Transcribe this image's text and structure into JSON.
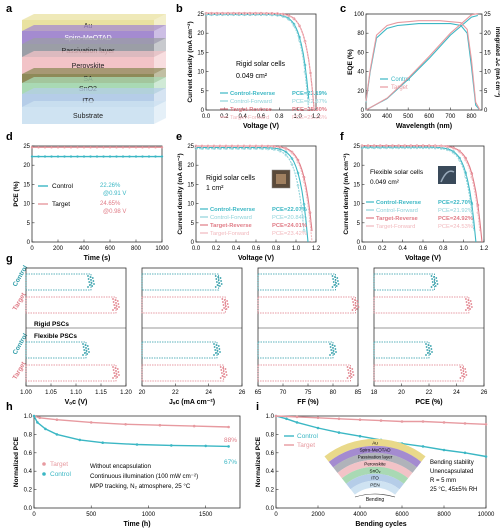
{
  "colors": {
    "control": "#3bb7c4",
    "target": "#e79aa0",
    "bar_control": "#2a9aa6",
    "bar_target": "#e07b86"
  },
  "panels": {
    "a": {
      "letter": "a",
      "layers": [
        {
          "name": "Au",
          "color": "#e9e2a0"
        },
        {
          "name": "Spiro-MeOTAD",
          "color": "#a48bd0"
        },
        {
          "name": "Passivation layer",
          "color": "#9b9ea6"
        },
        {
          "name": "Perovskite",
          "color": "#f2c3c7"
        },
        {
          "name": "SA",
          "color": "#8e8a58"
        },
        {
          "name": "SnO2",
          "color": "#a9d9b4"
        },
        {
          "name": "ITO",
          "color": "#b5cde8"
        },
        {
          "name": "Substrate",
          "color": "#cfe3f2"
        }
      ]
    },
    "b": {
      "letter": "b",
      "note1": "Rigid solar cells",
      "note2": "0.049 cm²"
    },
    "c": {
      "letter": "c"
    },
    "d": {
      "letter": "d",
      "control_text": [
        "22.26%",
        "@0.91 V"
      ],
      "target_text": [
        "24.65%",
        "@0.98 V"
      ]
    },
    "e": {
      "letter": "e",
      "note1": "Rigid solar cells",
      "note2": "1 cm²"
    },
    "f": {
      "letter": "f",
      "note1": "Flexible solar cells",
      "note2": "0.049 cm²"
    },
    "g": {
      "letter": "g",
      "row_labels": [
        "Control",
        "Target",
        "Control",
        "Target"
      ],
      "group_labels": [
        "Rigid PSCs",
        "Flexible PSCs"
      ]
    },
    "h": {
      "letter": "h",
      "notes": [
        "Without encapsulation",
        "Continuous illumination (100 mW cm⁻²)",
        "MPP tracking, N₂ atmosphere, 25 °C"
      ],
      "end_labels": [
        "88%",
        "67%"
      ]
    },
    "i": {
      "letter": "i",
      "notes": [
        "Bending stability",
        "Unencapsulated",
        "R = 5 mm",
        "25 °C, 45±5% RH"
      ],
      "inset_layers": [
        "Au",
        "Spiro-MeOTAD",
        "Passivation layer",
        "Perovskite",
        "SnO₂",
        "ITO",
        "PEN"
      ],
      "inset_label": "Bending"
    }
  },
  "chart_data": [
    {
      "panel": "b",
      "type": "line",
      "xlabel": "Voltage (V)",
      "ylabel": "Current density (mA cm⁻²)",
      "xlim": [
        0.0,
        1.2
      ],
      "ylim": [
        0,
        25
      ],
      "xticks": [
        "0.0",
        "0.2",
        "0.4",
        "0.6",
        "0.8",
        "1.0",
        "1.2"
      ],
      "yticks": [
        "0",
        "5",
        "10",
        "15",
        "20",
        "25"
      ],
      "series": [
        {
          "name": "Control-Reverse",
          "pce": "PCE=23.19%",
          "jsc": 24.9,
          "voc": 1.13,
          "color": "#3bb7c4"
        },
        {
          "name": "Control-Forward",
          "pce": "PCE=22.87%",
          "jsc": 24.8,
          "voc": 1.12,
          "color": "#8fd3da"
        },
        {
          "name": "Target-Reverse",
          "pce": "PCE=25.30%",
          "jsc": 25.2,
          "voc": 1.18,
          "color": "#e07b86"
        },
        {
          "name": "Target-Forward",
          "pce": "PCE=25.26%",
          "jsc": 25.1,
          "voc": 1.18,
          "color": "#f1b8bd"
        }
      ]
    },
    {
      "panel": "c",
      "type": "line",
      "xlabel": "Wavelength (nm)",
      "ylabel": "EQE (%)",
      "y2label": "Integrated Jₛc (mA cm⁻²)",
      "xlim": [
        300,
        850
      ],
      "ylim": [
        0,
        100
      ],
      "y2lim": [
        0,
        25
      ],
      "xticks": [
        "300",
        "400",
        "500",
        "600",
        "700",
        "800"
      ],
      "yticks": [
        "0",
        "20",
        "40",
        "60",
        "80",
        "100"
      ],
      "y2ticks": [
        "0",
        "5",
        "10",
        "15",
        "20",
        "25"
      ],
      "series": [
        {
          "name": "Control",
          "color": "#3bb7c4",
          "eqe": [
            [
              300,
              8
            ],
            [
              320,
              40
            ],
            [
              350,
              75
            ],
            [
              400,
              85
            ],
            [
              450,
              88
            ],
            [
              500,
              89
            ],
            [
              550,
              90
            ],
            [
              600,
              90
            ],
            [
              650,
              90
            ],
            [
              700,
              90
            ],
            [
              750,
              88
            ],
            [
              780,
              80
            ],
            [
              800,
              45
            ],
            [
              820,
              5
            ],
            [
              840,
              0
            ]
          ],
          "integrated": [
            [
              300,
              0
            ],
            [
              400,
              3
            ],
            [
              500,
              8
            ],
            [
              600,
              13.5
            ],
            [
              700,
              19.5
            ],
            [
              800,
              24.2
            ],
            [
              830,
              24.6
            ]
          ]
        },
        {
          "name": "Target",
          "color": "#e79aa0",
          "eqe": [
            [
              300,
              9
            ],
            [
              320,
              42
            ],
            [
              350,
              78
            ],
            [
              400,
              88
            ],
            [
              450,
              91
            ],
            [
              500,
              92
            ],
            [
              550,
              93
            ],
            [
              600,
              93
            ],
            [
              650,
              93
            ],
            [
              700,
              92
            ],
            [
              750,
              91
            ],
            [
              780,
              84
            ],
            [
              800,
              52
            ],
            [
              820,
              8
            ],
            [
              840,
              0
            ]
          ],
          "integrated": [
            [
              300,
              0
            ],
            [
              400,
              3.1
            ],
            [
              500,
              8.3
            ],
            [
              600,
              14
            ],
            [
              700,
              20
            ],
            [
              800,
              24.8
            ],
            [
              830,
              25.1
            ]
          ]
        }
      ]
    },
    {
      "panel": "d",
      "type": "line",
      "xlabel": "Time (s)",
      "ylabel": "PCE (%)",
      "xlim": [
        0,
        1000
      ],
      "ylim": [
        0,
        25
      ],
      "xticks": [
        "0",
        "200",
        "400",
        "600",
        "800",
        "1000"
      ],
      "yticks": [
        "0",
        "5",
        "10",
        "15",
        "20",
        "25"
      ],
      "series": [
        {
          "name": "Control",
          "value": 22.26,
          "color": "#3bb7c4"
        },
        {
          "name": "Target",
          "value": 24.65,
          "color": "#e79aa0"
        }
      ]
    },
    {
      "panel": "e",
      "type": "line",
      "xlabel": "Voltage (V)",
      "ylabel": "Current density (mA cm⁻²)",
      "xlim": [
        0.0,
        1.2
      ],
      "ylim": [
        0,
        25
      ],
      "xticks": [
        "0.0",
        "0.2",
        "0.4",
        "0.6",
        "0.8",
        "1.0",
        "1.2"
      ],
      "yticks": [
        "0",
        "5",
        "10",
        "15",
        "20",
        "25"
      ],
      "series": [
        {
          "name": "Control-Reverse",
          "pce": "PCE=22.07%",
          "jsc": 24.6,
          "voc": 1.12,
          "color": "#3bb7c4"
        },
        {
          "name": "Control-Forward",
          "pce": "PCE=20.84%",
          "jsc": 24.3,
          "voc": 1.09,
          "color": "#8fd3da"
        },
        {
          "name": "Target-Reverse",
          "pce": "PCE=24.01%",
          "jsc": 25.0,
          "voc": 1.17,
          "color": "#e07b86"
        },
        {
          "name": "Target-Forward",
          "pce": "PCE=23.42%",
          "jsc": 24.9,
          "voc": 1.16,
          "color": "#f1b8bd"
        }
      ]
    },
    {
      "panel": "f",
      "type": "line",
      "xlabel": "Voltage (V)",
      "ylabel": "Current density (mA cm⁻²)",
      "xlim": [
        0.0,
        1.2
      ],
      "ylim": [
        0,
        25
      ],
      "xticks": [
        "0.0",
        "0.2",
        "0.4",
        "0.6",
        "0.8",
        "1.0",
        "1.2"
      ],
      "yticks": [
        "0",
        "5",
        "10",
        "15",
        "20",
        "25"
      ],
      "series": [
        {
          "name": "Control-Reverse",
          "pce": "PCE=22.70%",
          "jsc": 24.7,
          "voc": 1.12,
          "color": "#3bb7c4"
        },
        {
          "name": "Control-Forward",
          "pce": "PCE=21.92%",
          "jsc": 24.5,
          "voc": 1.11,
          "color": "#8fd3da"
        },
        {
          "name": "Target-Reverse",
          "pce": "PCE=24.92%",
          "jsc": 25.1,
          "voc": 1.18,
          "color": "#e07b86"
        },
        {
          "name": "Target-Forward",
          "pce": "PCE=24.53%",
          "jsc": 25.0,
          "voc": 1.17,
          "color": "#f1b8bd"
        }
      ]
    },
    {
      "panel": "g",
      "type": "bar",
      "categories": [
        "Control (Rigid)",
        "Target (Rigid)",
        "Control (Flexible)",
        "Target (Flexible)"
      ],
      "subplots": [
        {
          "xlabel": "Vₒc (V)",
          "xlim": [
            1.0,
            1.2
          ],
          "xticks": [
            "1.00",
            "1.05",
            "1.10",
            "1.15",
            "1.20"
          ],
          "values": [
            1.13,
            1.18,
            1.12,
            1.18
          ]
        },
        {
          "xlabel": "Jₛc (mA cm⁻²)",
          "xlim": [
            20,
            26
          ],
          "xticks": [
            "20",
            "22",
            "24",
            "26"
          ],
          "values": [
            24.6,
            25.0,
            24.5,
            24.9
          ]
        },
        {
          "xlabel": "FF (%)",
          "xlim": [
            65,
            85
          ],
          "xticks": [
            "65",
            "70",
            "75",
            "80",
            "85"
          ],
          "values": [
            80.5,
            84.5,
            80.0,
            83.5
          ]
        },
        {
          "xlabel": "PCE (%)",
          "xlim": [
            18,
            26
          ],
          "xticks": [
            "18",
            "20",
            "22",
            "24",
            "26"
          ],
          "values": [
            22.4,
            24.9,
            22.0,
            24.5
          ]
        }
      ]
    },
    {
      "panel": "h",
      "type": "line",
      "xlabel": "Time (h)",
      "ylabel": "Normalized PCE",
      "xlim": [
        0,
        1800
      ],
      "ylim": [
        0.0,
        1.0
      ],
      "xticks": [
        "0",
        "500",
        "1000",
        "1500"
      ],
      "yticks": [
        "0.0",
        "0.2",
        "0.4",
        "0.6",
        "0.8",
        "1.0"
      ],
      "series": [
        {
          "name": "Target",
          "color": "#e79aa0",
          "points": [
            [
              0,
              1.0
            ],
            [
              50,
              0.98
            ],
            [
              200,
              0.96
            ],
            [
              500,
              0.93
            ],
            [
              800,
              0.91
            ],
            [
              1100,
              0.9
            ],
            [
              1400,
              0.89
            ],
            [
              1700,
              0.88
            ]
          ]
        },
        {
          "name": "Control",
          "color": "#3bb7c4",
          "points": [
            [
              0,
              1.0
            ],
            [
              30,
              0.93
            ],
            [
              100,
              0.86
            ],
            [
              200,
              0.8
            ],
            [
              400,
              0.74
            ],
            [
              600,
              0.71
            ],
            [
              900,
              0.69
            ],
            [
              1200,
              0.68
            ],
            [
              1500,
              0.675
            ],
            [
              1700,
              0.67
            ]
          ]
        }
      ]
    },
    {
      "panel": "i",
      "type": "line",
      "xlabel": "Bending cycles",
      "ylabel": "Normalized PCE",
      "xlim": [
        0,
        10000
      ],
      "ylim": [
        0.0,
        1.0
      ],
      "xticks": [
        "0",
        "2000",
        "4000",
        "6000",
        "8000",
        "10000"
      ],
      "yticks": [
        "0.0",
        "0.2",
        "0.4",
        "0.6",
        "0.8",
        "1.0"
      ],
      "series": [
        {
          "name": "Control",
          "color": "#3bb7c4",
          "points": [
            [
              0,
              1.0
            ],
            [
              500,
              0.97
            ],
            [
              1000,
              0.93
            ],
            [
              2000,
              0.87
            ],
            [
              3000,
              0.82
            ],
            [
              4000,
              0.78
            ],
            [
              5000,
              0.74
            ],
            [
              6000,
              0.7
            ],
            [
              7000,
              0.67
            ],
            [
              8000,
              0.63
            ],
            [
              9000,
              0.6
            ],
            [
              10000,
              0.56
            ]
          ]
        },
        {
          "name": "Target",
          "color": "#e79aa0",
          "points": [
            [
              0,
              1.0
            ],
            [
              1000,
              0.99
            ],
            [
              2000,
              0.98
            ],
            [
              3000,
              0.97
            ],
            [
              4000,
              0.96
            ],
            [
              5000,
              0.95
            ],
            [
              6000,
              0.94
            ],
            [
              7000,
              0.94
            ],
            [
              8000,
              0.93
            ],
            [
              9000,
              0.92
            ],
            [
              10000,
              0.91
            ]
          ]
        }
      ]
    }
  ]
}
